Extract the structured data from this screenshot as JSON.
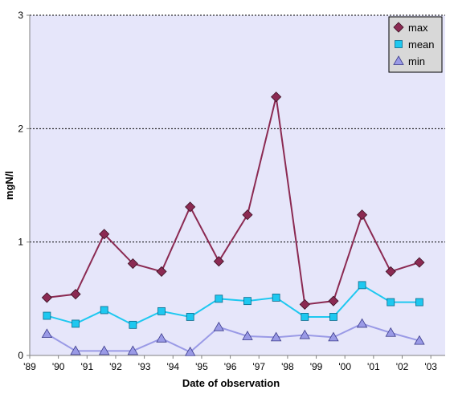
{
  "chart_data": {
    "type": "line",
    "xlabel": "Date of observation",
    "ylabel": "mgN/l",
    "x_tick_labels": [
      "'89",
      "'90",
      "'91",
      "'92",
      "'93",
      "'94",
      "'95",
      "'96",
      "'97",
      "'98",
      "'99",
      "'00",
      "'01",
      "'02",
      "'03"
    ],
    "y_ticks": [
      0,
      1,
      2,
      3
    ],
    "ylim": [
      0,
      3
    ],
    "xlim": [
      1989,
      2003.5
    ],
    "grid": "horizontal dotted at 1, 2, 3",
    "legend_position": "top-right",
    "plot_background": "#e6e6fa",
    "x": [
      1989.6,
      1990.6,
      1991.6,
      1992.6,
      1993.6,
      1994.6,
      1995.6,
      1996.6,
      1997.6,
      1998.6,
      1999.6,
      2000.6,
      2001.6,
      2002.6
    ],
    "series": [
      {
        "name": "max",
        "color": "#8b2a52",
        "marker": "diamond",
        "values": [
          0.51,
          0.54,
          1.07,
          0.81,
          0.74,
          1.31,
          0.83,
          1.24,
          2.28,
          0.45,
          0.48,
          1.24,
          0.74,
          0.82
        ]
      },
      {
        "name": "mean",
        "color": "#1ec8f0",
        "marker": "square",
        "values": [
          0.35,
          0.28,
          0.4,
          0.27,
          0.39,
          0.34,
          0.5,
          0.48,
          0.51,
          0.34,
          0.34,
          0.62,
          0.47,
          0.47
        ]
      },
      {
        "name": "min",
        "color": "#9a9ae6",
        "marker": "triangle",
        "values": [
          0.19,
          0.04,
          0.04,
          0.04,
          0.15,
          0.03,
          0.25,
          0.17,
          0.16,
          0.18,
          0.16,
          0.28,
          0.2,
          0.13
        ]
      }
    ]
  }
}
